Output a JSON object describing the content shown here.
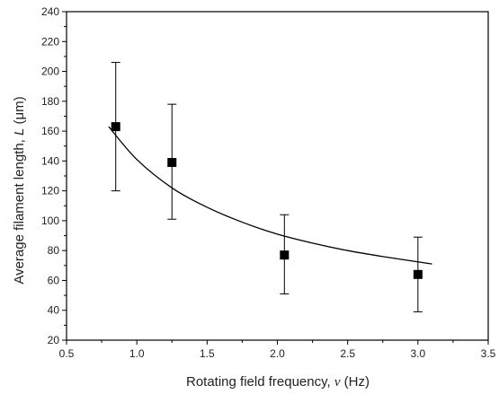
{
  "chart_data": {
    "type": "scatter",
    "title": "",
    "xlabel_prefix": "Rotating field frequency, ",
    "xlabel_symbol": "ν",
    "xlabel_suffix": " (Hz)",
    "ylabel_prefix": "Average filament length, ",
    "ylabel_symbol": "L",
    "ylabel_suffix": " (μm)",
    "xlim": [
      0.5,
      3.5
    ],
    "ylim": [
      20,
      240
    ],
    "x_ticks": [
      "0.5",
      "1.0",
      "1.5",
      "2.0",
      "2.5",
      "3.0",
      "3.5"
    ],
    "y_ticks": [
      "20",
      "40",
      "60",
      "80",
      "100",
      "120",
      "140",
      "160",
      "180",
      "200",
      "220",
      "240"
    ],
    "grid": false,
    "series": [
      {
        "kind": "points-with-error-bars",
        "marker": "filled-square",
        "points": [
          {
            "x": 0.85,
            "y": 163,
            "y_low": 120,
            "y_high": 206
          },
          {
            "x": 1.25,
            "y": 139,
            "y_low": 101,
            "y_high": 178
          },
          {
            "x": 2.05,
            "y": 77,
            "y_low": 51,
            "y_high": 104
          },
          {
            "x": 3.0,
            "y": 64,
            "y_low": 39,
            "y_high": 89
          }
        ]
      },
      {
        "kind": "fit-curve",
        "x": [
          0.8,
          1.0,
          1.25,
          1.5,
          1.75,
          2.0,
          2.25,
          2.5,
          2.75,
          3.1
        ],
        "y": [
          163,
          141,
          122,
          109,
          99,
          91,
          85,
          80,
          76,
          71
        ]
      }
    ],
    "colors": {
      "marker": "#000000",
      "line": "#000000",
      "axis": "#000000"
    }
  }
}
